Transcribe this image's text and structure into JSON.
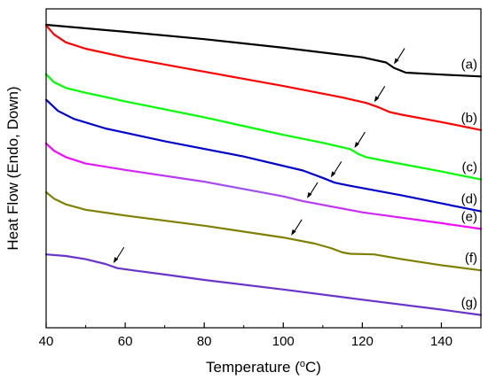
{
  "chart_data": {
    "type": "line",
    "xlabel": "Temperature (°C)",
    "xlabel_main": "Temperature (",
    "xlabel_sup": "o",
    "xlabel_unit": "C)",
    "ylabel": "Heat Flow (Endo, Down)",
    "xlim": [
      40,
      150
    ],
    "x_ticks": [
      40,
      60,
      80,
      100,
      120,
      140
    ],
    "y_ticks_shown": false,
    "grid": false,
    "legend": "none",
    "series": [
      {
        "name": "(a)",
        "color": "#000000",
        "points": [
          [
            40,
            0.95
          ],
          [
            60,
            0.928
          ],
          [
            80,
            0.905
          ],
          [
            100,
            0.878
          ],
          [
            120,
            0.848
          ],
          [
            126,
            0.832
          ],
          [
            128,
            0.815
          ],
          [
            131,
            0.8
          ],
          [
            140,
            0.794
          ],
          [
            150,
            0.788
          ]
        ],
        "arrow_x": 128
      },
      {
        "name": "(b)",
        "color": "#ff0000",
        "points": [
          [
            40,
            0.948
          ],
          [
            42,
            0.92
          ],
          [
            45,
            0.895
          ],
          [
            50,
            0.875
          ],
          [
            60,
            0.848
          ],
          [
            80,
            0.803
          ],
          [
            100,
            0.758
          ],
          [
            115,
            0.722
          ],
          [
            121,
            0.705
          ],
          [
            124,
            0.692
          ],
          [
            127,
            0.676
          ],
          [
            130,
            0.668
          ],
          [
            140,
            0.645
          ],
          [
            150,
            0.62
          ]
        ],
        "arrow_x": 123
      },
      {
        "name": "(c)",
        "color": "#00ff00",
        "points": [
          [
            40,
            0.795
          ],
          [
            42,
            0.77
          ],
          [
            45,
            0.752
          ],
          [
            50,
            0.737
          ],
          [
            60,
            0.71
          ],
          [
            80,
            0.66
          ],
          [
            100,
            0.605
          ],
          [
            110,
            0.58
          ],
          [
            117,
            0.56
          ],
          [
            119,
            0.545
          ],
          [
            121,
            0.535
          ],
          [
            125,
            0.525
          ],
          [
            140,
            0.49
          ],
          [
            150,
            0.465
          ]
        ],
        "arrow_x": 118
      },
      {
        "name": "(d)",
        "color": "#0000cc",
        "points": [
          [
            40,
            0.715
          ],
          [
            43,
            0.68
          ],
          [
            47,
            0.655
          ],
          [
            55,
            0.625
          ],
          [
            70,
            0.585
          ],
          [
            90,
            0.537
          ],
          [
            105,
            0.493
          ],
          [
            110,
            0.47
          ],
          [
            113,
            0.455
          ],
          [
            117,
            0.445
          ],
          [
            130,
            0.415
          ],
          [
            140,
            0.39
          ],
          [
            150,
            0.365
          ]
        ],
        "arrow_x": 112
      },
      {
        "name": "(e)",
        "color": "#ff00ff",
        "mid_color": "#9955ee",
        "points": [
          [
            40,
            0.578
          ],
          [
            42,
            0.555
          ],
          [
            45,
            0.535
          ],
          [
            50,
            0.515
          ],
          [
            60,
            0.495
          ],
          [
            80,
            0.458
          ],
          [
            100,
            0.412
          ],
          [
            105,
            0.397
          ],
          [
            108,
            0.39
          ],
          [
            120,
            0.362
          ],
          [
            140,
            0.328
          ],
          [
            150,
            0.31
          ]
        ],
        "arrow_x": 106
      },
      {
        "name": "(f)",
        "color": "#808000",
        "points": [
          [
            40,
            0.425
          ],
          [
            42,
            0.405
          ],
          [
            45,
            0.387
          ],
          [
            50,
            0.37
          ],
          [
            60,
            0.352
          ],
          [
            80,
            0.32
          ],
          [
            100,
            0.283
          ],
          [
            108,
            0.264
          ],
          [
            112,
            0.25
          ],
          [
            115,
            0.236
          ],
          [
            117,
            0.232
          ],
          [
            123,
            0.23
          ],
          [
            130,
            0.215
          ],
          [
            140,
            0.196
          ],
          [
            150,
            0.18
          ]
        ],
        "arrow_x": 102
      },
      {
        "name": "(g)",
        "color": "#6a33cc",
        "points": [
          [
            40,
            0.23
          ],
          [
            45,
            0.225
          ],
          [
            50,
            0.215
          ],
          [
            55,
            0.2
          ],
          [
            58,
            0.187
          ],
          [
            62,
            0.18
          ],
          [
            70,
            0.167
          ],
          [
            80,
            0.15
          ],
          [
            100,
            0.12
          ],
          [
            120,
            0.088
          ],
          [
            140,
            0.057
          ],
          [
            150,
            0.04
          ]
        ],
        "arrow_x": 57
      }
    ]
  }
}
